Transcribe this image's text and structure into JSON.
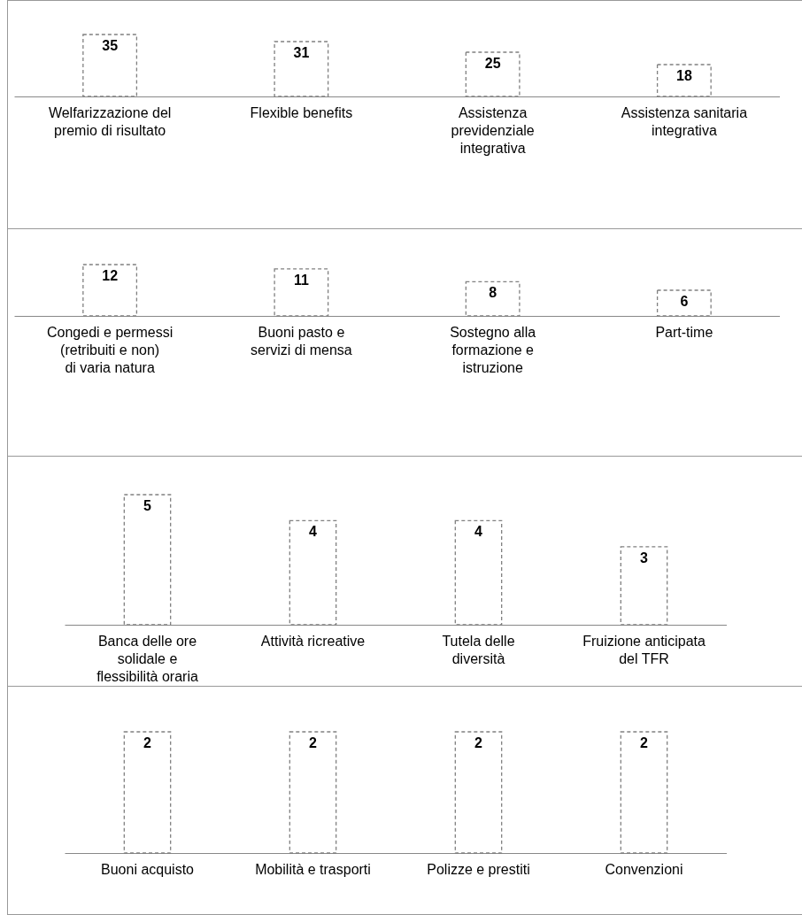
{
  "chart_data": [
    {
      "type": "bar",
      "categories": [
        "Welfarizzazione del premio di risultato",
        "Flexible benefits",
        "Assistenza previdenziale integrativa",
        "Assistenza sanitaria integrativa"
      ],
      "values": [
        35,
        31,
        25,
        18
      ],
      "color": "#808080",
      "data_labels": true
    },
    {
      "type": "bar",
      "categories": [
        "Congedi e permessi (retribuiti e non) di varia natura",
        "Buoni pasto e servizi di mensa",
        "Sostegno alla formazione e istruzione",
        "Part-time"
      ],
      "values": [
        12,
        11,
        8,
        6
      ],
      "color": "#808080",
      "data_labels": true
    },
    {
      "type": "bar",
      "categories": [
        "Banca delle ore solidale e flessibilità oraria",
        "Attività ricreative",
        "Tutela delle diversità",
        "Fruizione anticipata del TFR"
      ],
      "values": [
        5,
        4,
        4,
        3
      ],
      "color": "#808080",
      "data_labels": true
    },
    {
      "type": "bar",
      "categories": [
        "Buoni acquisto",
        "Mobilità e trasporti",
        "Polizze e prestiti",
        "Convenzioni"
      ],
      "values": [
        2,
        2,
        2,
        2
      ],
      "color": "#808080",
      "data_labels": true
    }
  ]
}
